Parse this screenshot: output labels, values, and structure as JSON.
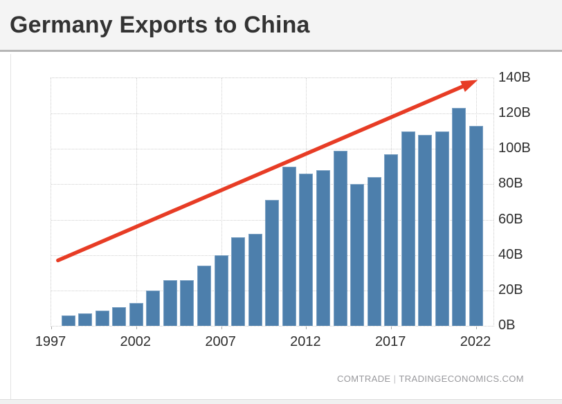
{
  "header": {
    "title": "Germany Exports to China"
  },
  "attribution": {
    "source": "COMTRADE",
    "separator": "|",
    "site": "TRADINGECONOMICS.COM"
  },
  "colors": {
    "bar": "#4d7fac",
    "bar_border": "#7da2c4",
    "trend_arrow": "#e73c25",
    "grid": "#cfcfcf",
    "header_bg": "#f4f4f4",
    "title_text": "#333333",
    "axis_text": "#2d2d2d",
    "attribution_text": "#98989c"
  },
  "chart_data": {
    "type": "bar",
    "title": "Germany Exports to China",
    "unit_suffix": "B",
    "categories": [
      1998,
      1999,
      2000,
      2001,
      2002,
      2003,
      2004,
      2005,
      2006,
      2007,
      2008,
      2009,
      2010,
      2011,
      2012,
      2013,
      2014,
      2015,
      2016,
      2017,
      2018,
      2019,
      2020,
      2021,
      2022
    ],
    "values": [
      6,
      7,
      8.5,
      10.5,
      13,
      20,
      26,
      26,
      34,
      40,
      50,
      52,
      71,
      90,
      86,
      88,
      99,
      80,
      84,
      97,
      110,
      108,
      110,
      123,
      113
    ],
    "xlabel": "",
    "ylabel": "",
    "ylim": [
      0,
      140
    ],
    "y_ticks": [
      0,
      20,
      40,
      60,
      80,
      100,
      120,
      140
    ],
    "y_tick_labels": [
      "0B",
      "20B",
      "40B",
      "60B",
      "80B",
      "100B",
      "120B",
      "140B"
    ],
    "y_axis_side": "right",
    "x_tick_years": [
      1997,
      2002,
      2007,
      2012,
      2017,
      2022
    ],
    "x_tick_labels": [
      "1997",
      "2002",
      "2007",
      "2012",
      "2017",
      "2022"
    ],
    "grid": "dotted",
    "legend": "none",
    "annotations": [
      {
        "type": "trend-arrow",
        "color": "#e73c25",
        "from": {
          "year": 1997.4,
          "value": 37
        },
        "to": {
          "year": 2022.1,
          "value": 139
        }
      }
    ]
  }
}
